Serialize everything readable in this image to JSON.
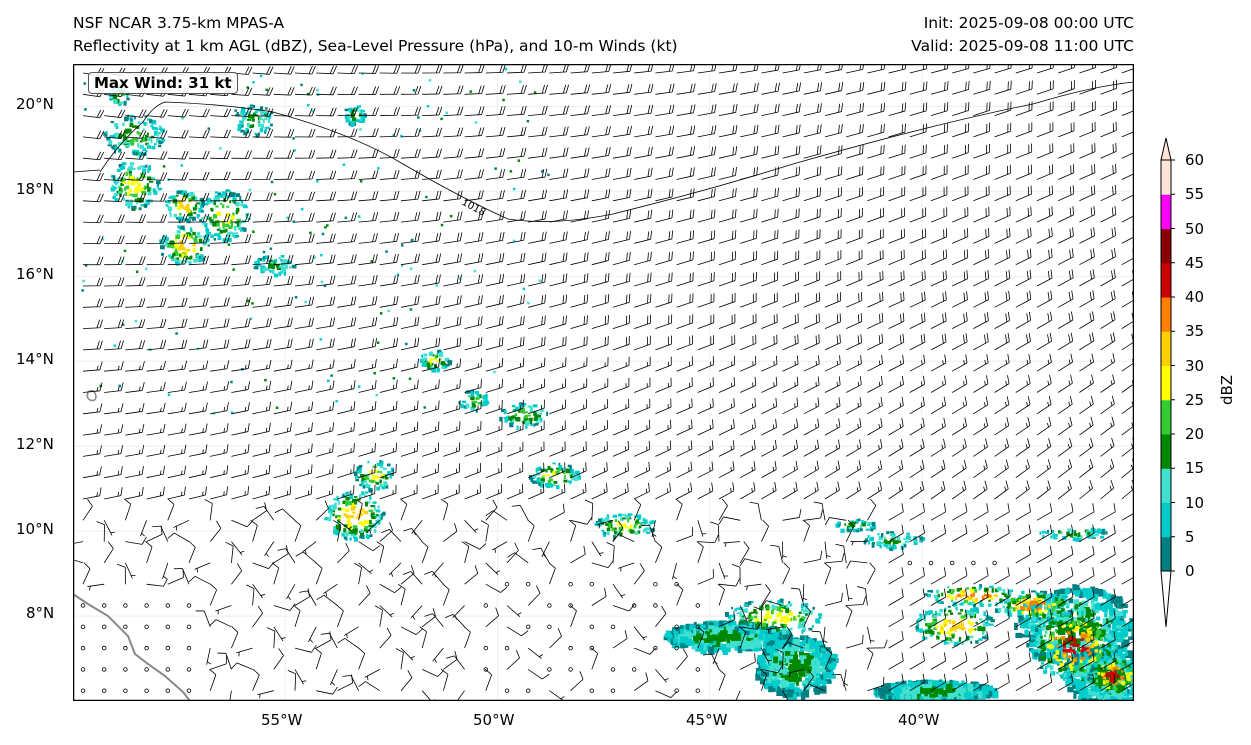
{
  "header": {
    "model": "NSF NCAR 3.75-km MPAS-A",
    "fields": "Reflectivity at 1 km AGL (dBZ), Sea-Level Pressure (hPa), and 10-m Winds (kt)",
    "init": "Init: 2025-09-08 00:00 UTC",
    "valid": "Valid: 2025-09-08 11:00 UTC"
  },
  "map": {
    "max_wind_label": "Max Wind: 31 kt",
    "isobar_label": "1018",
    "lat_labels": [
      "20°N",
      "18°N",
      "16°N",
      "14°N",
      "12°N",
      "10°N",
      "8°N"
    ],
    "lon_labels": [
      "55°W",
      "50°W",
      "45°W",
      "40°W"
    ],
    "extent": {
      "lon_min": -60,
      "lon_max": -35,
      "lat_min": 6,
      "lat_max": 21
    }
  },
  "colorbar": {
    "label": "dBZ",
    "ticks": [
      "0",
      "5",
      "10",
      "15",
      "20",
      "25",
      "30",
      "35",
      "40",
      "45",
      "50",
      "55",
      "60"
    ],
    "colors": [
      "#008080",
      "#00cccc",
      "#40e0d0",
      "#008800",
      "#33cc33",
      "#ffff00",
      "#ffd000",
      "#ff8000",
      "#cc0000",
      "#8b0000",
      "#ff00ff",
      "#ffe4d8"
    ]
  }
}
